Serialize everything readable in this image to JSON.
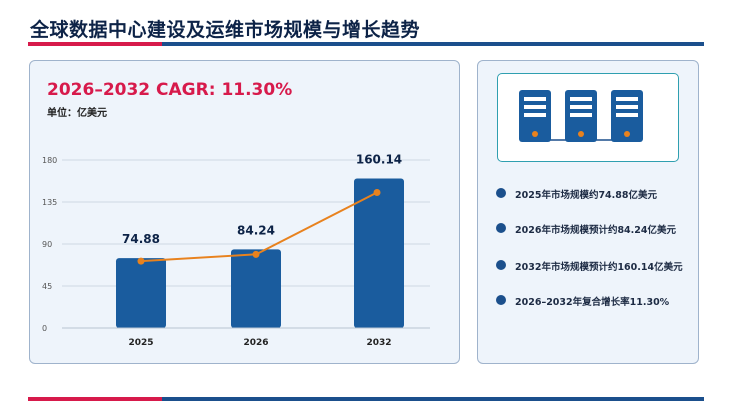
{
  "page": {
    "title": "全球数据中心建设及运维市场规模与增长趋势",
    "cagr": "2026–2032 CAGR: 11.30%",
    "unit": "单位：亿美元"
  },
  "colors": {
    "accent_red": "#d71a4b",
    "navy": "#1b4f8c",
    "bar": "#1a5c9e",
    "line": "#e8821e",
    "panel_bg": "#eef4fb",
    "teal": "#2f9fb0"
  },
  "icons": [
    "server-rack-icon"
  ],
  "bullets": [
    "2025年市场规模约74.88亿美元",
    "2026年市场规模预计约84.24亿美元",
    "2032年市场规模预计约160.14亿美元",
    "2026–2032年复合增长率11.30%"
  ],
  "chart_data": {
    "type": "bar",
    "categories": [
      "2025",
      "2026",
      "2032"
    ],
    "values": [
      74.88,
      84.24,
      160.14
    ],
    "data_labels": [
      "74.88",
      "84.24",
      "160.14"
    ],
    "overlay_line": true,
    "yticks": [
      "0",
      "45",
      "90",
      "135",
      "180"
    ],
    "ylim": [
      0,
      180
    ],
    "grid": true,
    "legend": "none"
  }
}
